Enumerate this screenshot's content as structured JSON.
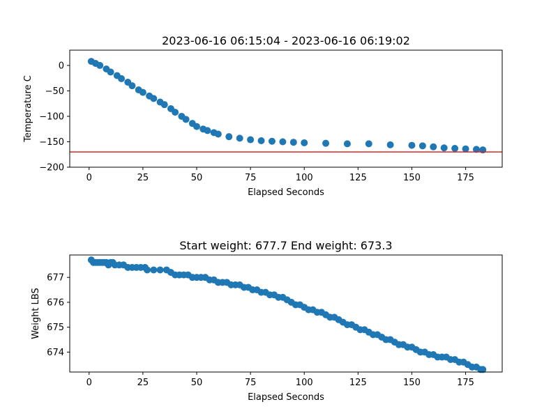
{
  "colors": {
    "series": "#1f77b4",
    "reference_line": "#d62728",
    "axes": "#000000",
    "background": "#ffffff"
  },
  "chart_data": [
    {
      "type": "scatter",
      "title": "2023-06-16 06:15:04 - 2023-06-16 06:19:02",
      "xlabel": "Elapsed Seconds",
      "ylabel": "Temperature C",
      "xlim": [
        -9,
        192
      ],
      "ylim": [
        -200,
        30
      ],
      "xticks": [
        0,
        25,
        50,
        75,
        100,
        125,
        150,
        175
      ],
      "yticks": [
        -200,
        -150,
        -100,
        -50,
        0
      ],
      "grid": false,
      "reference_line": {
        "orientation": "horizontal",
        "y": -170,
        "color": "#d62728"
      },
      "series": [
        {
          "marker": "circle",
          "x": [
            1,
            3,
            5,
            8,
            10,
            13,
            15,
            18,
            20,
            23,
            25,
            28,
            30,
            33,
            35,
            38,
            40,
            43,
            45,
            48,
            50,
            53,
            55,
            58,
            60,
            65,
            70,
            75,
            80,
            85,
            90,
            95,
            100,
            110,
            120,
            130,
            140,
            150,
            155,
            160,
            165,
            170,
            175,
            180,
            183
          ],
          "y": [
            8,
            4,
            0,
            -7,
            -13,
            -20,
            -26,
            -33,
            -40,
            -48,
            -53,
            -60,
            -65,
            -72,
            -77,
            -85,
            -92,
            -100,
            -106,
            -114,
            -120,
            -125,
            -128,
            -132,
            -135,
            -140,
            -143,
            -146,
            -148,
            -149,
            -150,
            -151,
            -152,
            -153,
            -154,
            -154,
            -156,
            -157,
            -158,
            -160,
            -162,
            -163,
            -164,
            -165,
            -166
          ]
        }
      ]
    },
    {
      "type": "scatter",
      "title": "Start weight: 677.7 End weight: 673.3",
      "xlabel": "Elapsed Seconds",
      "ylabel": "Weight LBS",
      "xlim": [
        -9,
        192
      ],
      "ylim": [
        673.2,
        677.9
      ],
      "xticks": [
        0,
        25,
        50,
        75,
        100,
        125,
        150,
        175
      ],
      "yticks": [
        674,
        675,
        676,
        677
      ],
      "grid": false,
      "series": [
        {
          "marker": "circle",
          "x": [
            1,
            2,
            3,
            4,
            5,
            6,
            7,
            8,
            9,
            10,
            11,
            12,
            14,
            16,
            18,
            20,
            22,
            24,
            26,
            27,
            30,
            33,
            36,
            38,
            40,
            42,
            44,
            46,
            48,
            50,
            52,
            54,
            56,
            58,
            60,
            62,
            64,
            66,
            68,
            70,
            72,
            74,
            76,
            78,
            80,
            82,
            84,
            86,
            88,
            90,
            92,
            94,
            96,
            98,
            100,
            102,
            104,
            106,
            108,
            110,
            112,
            114,
            116,
            118,
            120,
            122,
            124,
            126,
            128,
            130,
            132,
            134,
            136,
            138,
            140,
            142,
            144,
            146,
            148,
            150,
            152,
            154,
            156,
            158,
            160,
            162,
            164,
            166,
            168,
            170,
            172,
            174,
            176,
            178,
            180,
            182,
            183
          ],
          "y": [
            677.7,
            677.6,
            677.6,
            677.6,
            677.6,
            677.6,
            677.6,
            677.6,
            677.5,
            677.6,
            677.6,
            677.5,
            677.5,
            677.5,
            677.4,
            677.4,
            677.4,
            677.4,
            677.4,
            677.3,
            677.3,
            677.3,
            677.3,
            677.2,
            677.1,
            677.1,
            677.1,
            677.1,
            677.0,
            677.0,
            677.0,
            677.0,
            676.9,
            676.9,
            676.8,
            676.8,
            676.8,
            676.7,
            676.7,
            676.7,
            676.6,
            676.6,
            676.5,
            676.5,
            676.4,
            676.4,
            676.3,
            676.3,
            676.2,
            676.2,
            676.1,
            676.0,
            675.9,
            675.9,
            675.8,
            675.7,
            675.7,
            675.6,
            675.6,
            675.5,
            675.4,
            675.4,
            675.3,
            675.2,
            675.1,
            675.1,
            675.0,
            674.9,
            674.9,
            674.8,
            674.7,
            674.7,
            674.6,
            674.5,
            674.5,
            674.4,
            674.3,
            674.3,
            674.2,
            674.2,
            674.1,
            674.0,
            674.0,
            673.9,
            673.9,
            673.8,
            673.8,
            673.8,
            673.7,
            673.7,
            673.6,
            673.6,
            673.5,
            673.4,
            673.4,
            673.3,
            673.3
          ]
        }
      ]
    }
  ]
}
